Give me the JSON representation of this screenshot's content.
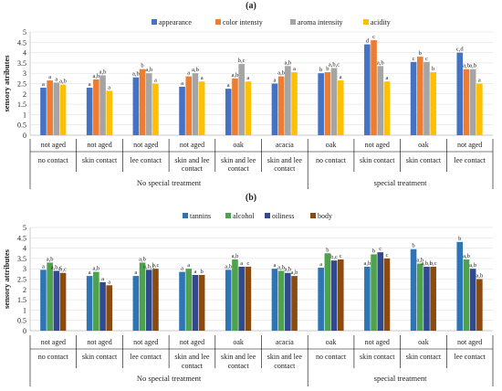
{
  "chart_data": [
    {
      "type": "bar",
      "panel_label": "(a)",
      "ylabel": "sensory atributes",
      "ylim": [
        0,
        5
      ],
      "yticks": [
        "0",
        "0.5",
        "1",
        "1.5",
        "2",
        "2.5",
        "3",
        "3.5",
        "4",
        "4.5",
        "5"
      ],
      "legend_position": "top-center",
      "categories": [
        {
          "line1": "not aged",
          "line2": "no contact",
          "line3": ""
        },
        {
          "line1": "not aged",
          "line2": "skin contact",
          "line3": ""
        },
        {
          "line1": "not aged",
          "line2": "lee contact",
          "line3": ""
        },
        {
          "line1": "not aged",
          "line2": "skin and lee",
          "line3": "contact"
        },
        {
          "line1": "oak",
          "line2": "skin and lee",
          "line3": "contact"
        },
        {
          "line1": "acacia",
          "line2": "skin and lee",
          "line3": "contact"
        },
        {
          "line1": "oak",
          "line2": "no contact",
          "line3": ""
        },
        {
          "line1": "not aged",
          "line2": "skin contact",
          "line3": ""
        },
        {
          "line1": "oak",
          "line2": "skin contact",
          "line3": ""
        },
        {
          "line1": "not aged",
          "line2": "lee contact",
          "line3": ""
        }
      ],
      "groups": [
        {
          "label": "No special treatment",
          "start": 0,
          "end": 5
        },
        {
          "label": "special treatment",
          "start": 6,
          "end": 9
        }
      ],
      "series": [
        {
          "name": "appearance",
          "color": "#4472c4",
          "values": [
            2.3,
            2.3,
            2.8,
            2.35,
            2.25,
            2.5,
            3.0,
            4.4,
            3.55,
            4.0
          ],
          "labels": [
            "a",
            "a",
            "a,b",
            "a",
            "a",
            "a",
            "b",
            "d",
            "c",
            "c,d"
          ],
          "label_colors": [
            "#222",
            "#222",
            "#222",
            "#222",
            "#222",
            "#222",
            "#222",
            "#222",
            "#222",
            "#222"
          ]
        },
        {
          "name": "color intensty",
          "color": "#ed7d31",
          "values": [
            2.65,
            2.7,
            3.2,
            2.85,
            2.75,
            2.85,
            3.05,
            4.6,
            3.8,
            3.2
          ],
          "labels": [
            "a",
            "a,b",
            "b",
            "a",
            "a,b",
            "a,b",
            "b",
            "c",
            "b",
            "a,b"
          ],
          "label_colors": [
            "#c0375e",
            "#222",
            "#c0375e",
            "#c0375e",
            "#222",
            "#222",
            "#222",
            "#222",
            "#222",
            "#222"
          ]
        },
        {
          "name": "aroma intensity",
          "color": "#a5a5a5",
          "values": [
            2.55,
            2.9,
            3.0,
            3.0,
            3.45,
            3.35,
            3.25,
            3.35,
            3.55,
            3.2
          ],
          "labels": [
            "a",
            "a,b",
            "a,b",
            "a,b",
            "b,c",
            "a,b",
            "a,b,c",
            "a,b",
            "c",
            "a,b"
          ],
          "label_colors": [
            "#222",
            "#222",
            "#222",
            "#222",
            "#222",
            "#222",
            "#222",
            "#222",
            "#222",
            "#222"
          ]
        },
        {
          "name": "acidity",
          "color": "#ffc000",
          "values": [
            2.45,
            2.15,
            2.5,
            2.6,
            2.6,
            3.05,
            2.65,
            2.6,
            3.05,
            2.5
          ],
          "labels": [
            "a,b",
            "a",
            "a",
            "a",
            "a",
            "a",
            "a",
            "a",
            "b",
            "a"
          ],
          "label_colors": [
            "#222",
            "#222",
            "#222",
            "#222",
            "#222",
            "#222",
            "#222",
            "#222",
            "#222",
            "#222"
          ]
        }
      ]
    },
    {
      "type": "bar",
      "panel_label": "(b)",
      "ylabel": "sensory attributes",
      "ylim": [
        0,
        5
      ],
      "yticks": [
        "0",
        "0.5",
        "1",
        "1.5",
        "2",
        "2.5",
        "3",
        "3.5",
        "4",
        "4.5",
        "5"
      ],
      "legend_position": "top-center",
      "categories": [
        {
          "line1": "not aged",
          "line2": "no contact",
          "line3": ""
        },
        {
          "line1": "not aged",
          "line2": "skin contact",
          "line3": ""
        },
        {
          "line1": "not aged",
          "line2": "lee contact",
          "line3": ""
        },
        {
          "line1": "not aged",
          "line2": "skin and lee",
          "line3": "contact"
        },
        {
          "line1": "oak",
          "line2": "skin and lee",
          "line3": "contact"
        },
        {
          "line1": "acacia",
          "line2": "skin and lee",
          "line3": "contact"
        },
        {
          "line1": "oak",
          "line2": "no contact",
          "line3": ""
        },
        {
          "line1": "not aged",
          "line2": "skin contact",
          "line3": ""
        },
        {
          "line1": "oak",
          "line2": "skin contact",
          "line3": ""
        },
        {
          "line1": "not aged",
          "line2": "lee contact",
          "line3": ""
        }
      ],
      "groups": [
        {
          "label": "No special treatment",
          "start": 0,
          "end": 5
        },
        {
          "label": "special treatment",
          "start": 6,
          "end": 9
        }
      ],
      "series": [
        {
          "name": "tannins",
          "color": "#2e75b6",
          "values": [
            2.95,
            2.65,
            2.65,
            2.85,
            2.95,
            3.0,
            3.05,
            3.1,
            3.95,
            4.3
          ],
          "labels": [
            "a",
            "a",
            "a",
            "a",
            "a,b",
            "a",
            "a",
            "a,b",
            "b",
            "b"
          ],
          "label_colors": [
            "#222",
            "#222",
            "#222",
            "#222",
            "#222",
            "#222",
            "#222",
            "#222",
            "#222",
            "#222"
          ]
        },
        {
          "name": "alcohol",
          "color": "#4ea24e",
          "values": [
            3.3,
            2.85,
            3.3,
            3.0,
            3.45,
            2.9,
            3.75,
            3.7,
            3.25,
            3.45
          ],
          "labels": [
            "a,b",
            "a,b",
            "a,b",
            "a",
            "a,b",
            "a,b",
            "b",
            "b",
            "a,b",
            "a,b"
          ],
          "label_colors": [
            "#222",
            "#222",
            "#222",
            "#222",
            "#222",
            "#222",
            "#222",
            "#222",
            "#222",
            "#222"
          ]
        },
        {
          "name": "oiliness",
          "color": "#2f4a8f",
          "values": [
            2.9,
            2.35,
            2.95,
            2.7,
            3.1,
            2.8,
            3.4,
            3.8,
            3.1,
            3.0
          ],
          "labels": [
            "a,b,c",
            "a",
            "a,b,c",
            "a",
            "a",
            "a,b",
            "b,c",
            "c",
            "a,b,c",
            "a,b"
          ],
          "label_colors": [
            "#222",
            "#222",
            "#222",
            "#222",
            "#222",
            "#222",
            "#222",
            "#0a9b8a",
            "#222",
            "#222"
          ]
        },
        {
          "name": "body",
          "color": "#8b4a0e",
          "values": [
            2.8,
            2.2,
            3.0,
            2.7,
            3.1,
            2.65,
            3.45,
            3.5,
            3.1,
            2.5
          ],
          "labels": [
            "b,c",
            "a",
            "b,c",
            "b",
            "c",
            "a,b",
            "c",
            "c",
            "b,c",
            "a,b"
          ],
          "label_colors": [
            "#222",
            "#c0375e",
            "#222",
            "#222",
            "#222",
            "#222",
            "#222",
            "#222",
            "#222",
            "#222"
          ]
        }
      ]
    }
  ]
}
